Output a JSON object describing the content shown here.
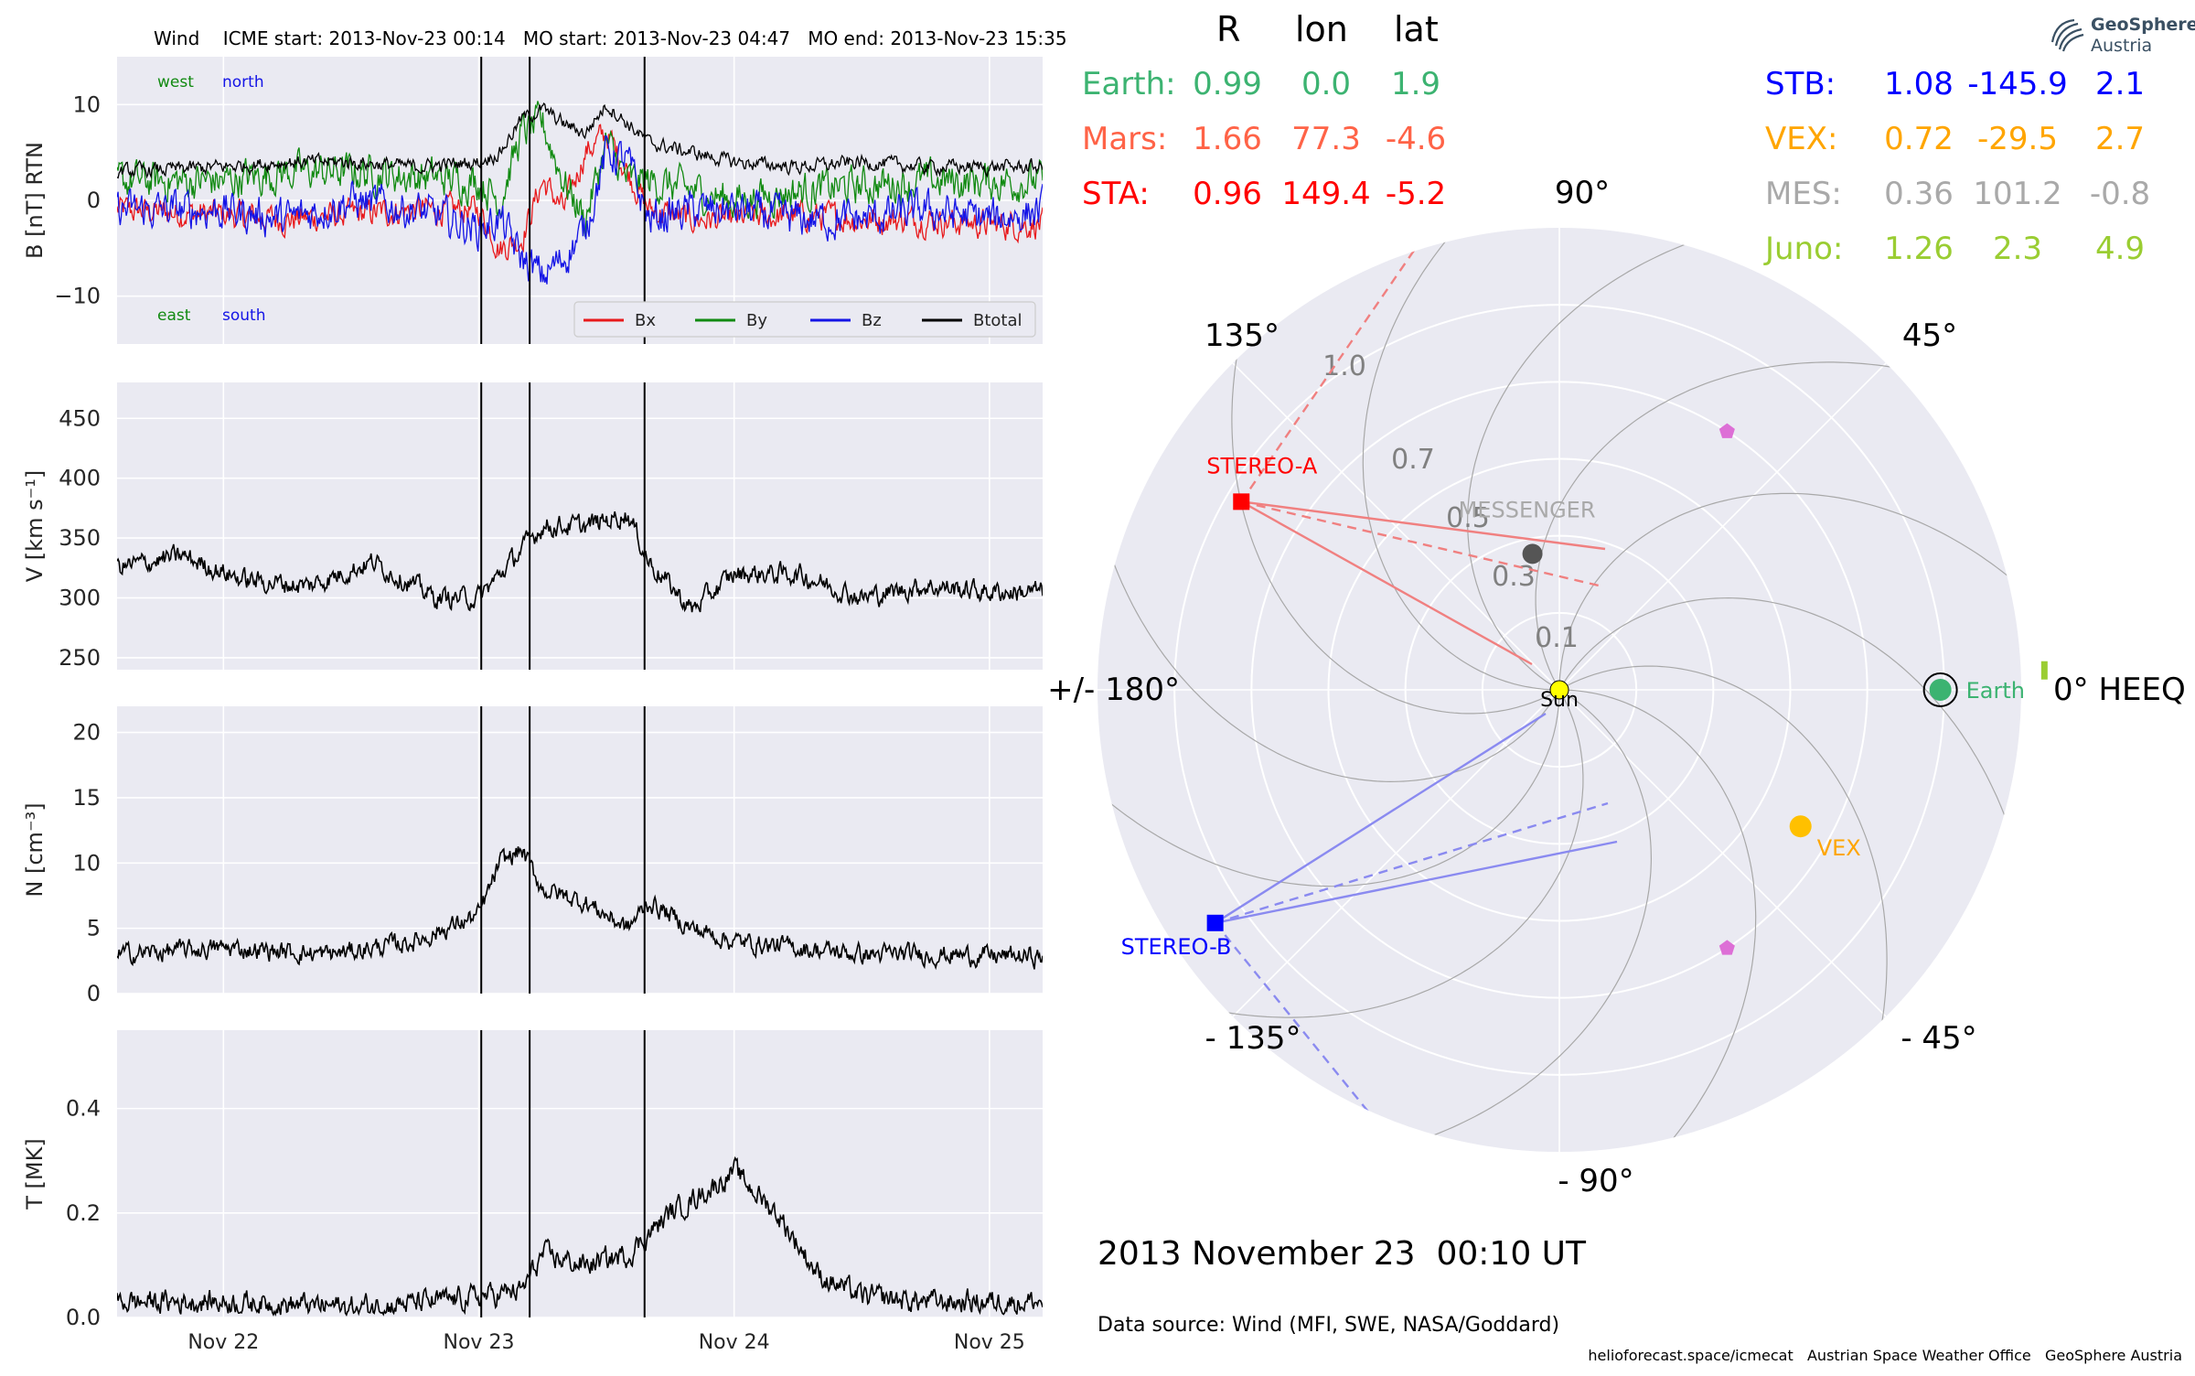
{
  "timeseries": {
    "title": "Wind    ICME start: 2013-Nov-23 00:14   MO start: 2013-Nov-23 04:47   MO end: 2013-Nov-23 15:35",
    "x_ticks": [
      "Nov 22",
      "Nov 23",
      "Nov 24",
      "Nov 25"
    ],
    "event_lines": [
      "2013-11-23 00:14",
      "2013-11-23 04:47",
      "2013-11-23 15:35"
    ],
    "x_range": [
      "2013-11-21 14:00",
      "2013-11-25 05:00"
    ]
  },
  "chart_data": [
    {
      "type": "line",
      "name": "B panel",
      "ylabel": "B [nT] RTN",
      "ylim": [
        -15,
        15
      ],
      "yticks": [
        "10",
        "0",
        "−10"
      ],
      "ytick_values": [
        10,
        0,
        -10
      ],
      "legend": {
        "placement": "lower-right",
        "entries": [
          "Bx",
          "By",
          "Bz",
          "Btotal"
        ]
      },
      "annotations": {
        "top_left": [
          "west",
          "north"
        ],
        "bottom_left": [
          "east",
          "south"
        ]
      },
      "x": [
        "2013-11-21 14:00",
        "2013-11-22 00:00",
        "2013-11-22 06:00",
        "2013-11-22 12:00",
        "2013-11-22 18:00",
        "2013-11-23 00:00",
        "2013-11-23 02:00",
        "2013-11-23 04:00",
        "2013-11-23 06:00",
        "2013-11-23 08:00",
        "2013-11-23 10:00",
        "2013-11-23 12:00",
        "2013-11-23 14:00",
        "2013-11-23 16:00",
        "2013-11-23 20:00",
        "2013-11-24 00:00",
        "2013-11-24 06:00",
        "2013-11-24 12:00",
        "2013-11-24 18:00",
        "2013-11-25 00:00",
        "2013-11-25 05:00"
      ],
      "series": [
        {
          "name": "Bx",
          "color": "#e8191c",
          "values": [
            -1,
            -1.5,
            -2,
            -1.5,
            -1,
            -1,
            -5,
            -4,
            2,
            -1,
            5,
            7,
            3,
            -1,
            -2,
            -2,
            -1.5,
            -2,
            -2,
            -2.5,
            -2.5
          ]
        },
        {
          "name": "By",
          "color": "#118a11",
          "values": [
            2,
            2,
            3,
            3,
            2.5,
            2,
            0,
            7,
            8,
            2,
            -2,
            6,
            2,
            2,
            1,
            0,
            1,
            1.5,
            2,
            2,
            2
          ]
        },
        {
          "name": "Bz",
          "color": "#1414e6",
          "values": [
            -1,
            -1,
            -2,
            0,
            -1,
            -3,
            -2,
            -6,
            -8,
            -6,
            -3,
            5,
            4,
            -2,
            -1,
            -1,
            -2,
            -2,
            -1,
            -2,
            -1
          ]
        },
        {
          "name": "Btotal",
          "color": "#000000",
          "values": [
            3,
            3.5,
            4,
            4,
            3.5,
            4,
            5,
            8.5,
            9.5,
            8,
            7,
            10,
            8,
            6,
            5,
            4,
            3.5,
            4,
            3.5,
            3.5,
            3.5
          ]
        }
      ]
    },
    {
      "type": "line",
      "name": "V panel",
      "ylabel": "V [km s⁻¹]",
      "ylim": [
        240,
        480
      ],
      "yticks": [
        "450",
        "400",
        "350",
        "300",
        "250"
      ],
      "ytick_values": [
        450,
        400,
        350,
        300,
        250
      ],
      "x": [
        "2013-11-21 14:00",
        "2013-11-21 20:00",
        "2013-11-22 02:00",
        "2013-11-22 08:00",
        "2013-11-22 14:00",
        "2013-11-22 20:00",
        "2013-11-23 00:00",
        "2013-11-23 03:00",
        "2013-11-23 06:00",
        "2013-11-23 10:00",
        "2013-11-23 14:00",
        "2013-11-23 16:00",
        "2013-11-23 20:00",
        "2013-11-24 00:00",
        "2013-11-24 06:00",
        "2013-11-24 12:00",
        "2013-11-24 18:00",
        "2013-11-25 00:00",
        "2013-11-25 05:00"
      ],
      "series": [
        {
          "name": "V",
          "color": "#000000",
          "values": [
            325,
            335,
            315,
            310,
            330,
            300,
            300,
            330,
            360,
            360,
            370,
            330,
            290,
            320,
            320,
            300,
            310,
            305,
            305
          ]
        }
      ]
    },
    {
      "type": "line",
      "name": "N panel",
      "ylabel": "N [cm⁻³]",
      "ylim": [
        0,
        22
      ],
      "yticks": [
        "20",
        "15",
        "10",
        "5",
        "0"
      ],
      "ytick_values": [
        20,
        15,
        10,
        5,
        0
      ],
      "x": [
        "2013-11-21 14:00",
        "2013-11-22 00:00",
        "2013-11-22 10:00",
        "2013-11-22 18:00",
        "2013-11-23 00:00",
        "2013-11-23 02:00",
        "2013-11-23 04:00",
        "2013-11-23 06:00",
        "2013-11-23 10:00",
        "2013-11-23 14:00",
        "2013-11-23 16:00",
        "2013-11-23 20:00",
        "2013-11-24 00:00",
        "2013-11-24 06:00",
        "2013-11-24 12:00",
        "2013-11-24 18:00",
        "2013-11-25 05:00"
      ],
      "series": [
        {
          "name": "N",
          "color": "#000000",
          "values": [
            3,
            3.5,
            3,
            4,
            6,
            10,
            11,
            8,
            7,
            5,
            7,
            5,
            4,
            3.5,
            3,
            3,
            2.8
          ]
        }
      ]
    },
    {
      "type": "line",
      "name": "T panel",
      "ylabel": "T [MK]",
      "ylim": [
        0,
        0.55
      ],
      "yticks": [
        "0.4",
        "0.2",
        "0.0"
      ],
      "ytick_values": [
        0.4,
        0.2,
        0.0
      ],
      "x": [
        "2013-11-21 14:00",
        "2013-11-22 00:00",
        "2013-11-22 12:00",
        "2013-11-22 20:00",
        "2013-11-23 00:00",
        "2013-11-23 04:00",
        "2013-11-23 06:00",
        "2013-11-23 10:00",
        "2013-11-23 14:00",
        "2013-11-23 18:00",
        "2013-11-23 22:00",
        "2013-11-24 00:00",
        "2013-11-24 04:00",
        "2013-11-24 08:00",
        "2013-11-24 12:00",
        "2013-11-24 18:00",
        "2013-11-25 05:00"
      ],
      "series": [
        {
          "name": "T",
          "color": "#000000",
          "values": [
            0.03,
            0.03,
            0.02,
            0.03,
            0.04,
            0.05,
            0.12,
            0.1,
            0.12,
            0.2,
            0.25,
            0.28,
            0.2,
            0.08,
            0.04,
            0.03,
            0.03
          ]
        }
      ]
    }
  ],
  "polar": {
    "angle_labels": [
      "0° HEEQ",
      "45°",
      "90°",
      "135°",
      "+/- 180°",
      "- 135°",
      "- 90°",
      "- 45°"
    ],
    "radial_labels": [
      "0.1",
      "0.3",
      "0.5",
      "0.7",
      "1.0"
    ],
    "r_max": 1.2,
    "bodies": [
      {
        "name": "Sun",
        "r": 0,
        "lon": 0,
        "color": "#ffff00"
      },
      {
        "name": "Earth",
        "r": 0.99,
        "lon": 0.0,
        "color": "#3cb371"
      },
      {
        "name": "VEX",
        "r": 0.72,
        "lon": -29.5,
        "color": "#ffc000"
      },
      {
        "name": "MESSENGER",
        "r": 0.36,
        "lon": 101.2,
        "color": "#555555"
      },
      {
        "name": "STEREO-A",
        "r": 0.96,
        "lon": 149.4,
        "color": "#ff0000"
      },
      {
        "name": "STEREO-B",
        "r": 1.08,
        "lon": -145.9,
        "color": "#0000ff"
      }
    ],
    "markers": [
      {
        "kind": "pentagon",
        "r": 0.8,
        "lon": 57,
        "color": "#dd6fd6"
      },
      {
        "kind": "pentagon",
        "r": 0.8,
        "lon": -57,
        "color": "#dd6fd6"
      },
      {
        "kind": "bar",
        "r": 1.26,
        "lon": 2.3,
        "color": "#9acd32"
      }
    ]
  },
  "positions_table": {
    "headers": [
      "R",
      "lon",
      "lat"
    ],
    "left": [
      {
        "label": "Earth:",
        "r": "0.99",
        "lon": "0.0",
        "lat": "1.9",
        "color": "#3cb371"
      },
      {
        "label": "Mars:",
        "r": "1.66",
        "lon": "77.3",
        "lat": "-4.6",
        "color": "#ff6347"
      },
      {
        "label": "STA:",
        "r": "0.96",
        "lon": "149.4",
        "lat": "-5.2",
        "color": "#ff0000"
      }
    ],
    "right": [
      {
        "label": "STB:",
        "r": "1.08",
        "lon": "-145.9",
        "lat": "2.1",
        "color": "#0000ff"
      },
      {
        "label": "VEX:",
        "r": "0.72",
        "lon": "-29.5",
        "lat": "2.7",
        "color": "#ffa500"
      },
      {
        "label": "MES:",
        "r": "0.36",
        "lon": "101.2",
        "lat": "-0.8",
        "color": "#a9a9a9"
      },
      {
        "label": "Juno:",
        "r": "1.26",
        "lon": "2.3",
        "lat": "4.9",
        "color": "#9acd32"
      }
    ]
  },
  "footer": {
    "timestamp": "2013 November 23  00:10 UT",
    "data_source": "Data source: Wind (MFI, SWE, NASA/Goddard)",
    "credits": "helioforecast.space/icmecat   Austrian Space Weather Office   GeoSphere Austria"
  },
  "logo": {
    "line1": "GeoSphere",
    "line2": "Austria"
  }
}
